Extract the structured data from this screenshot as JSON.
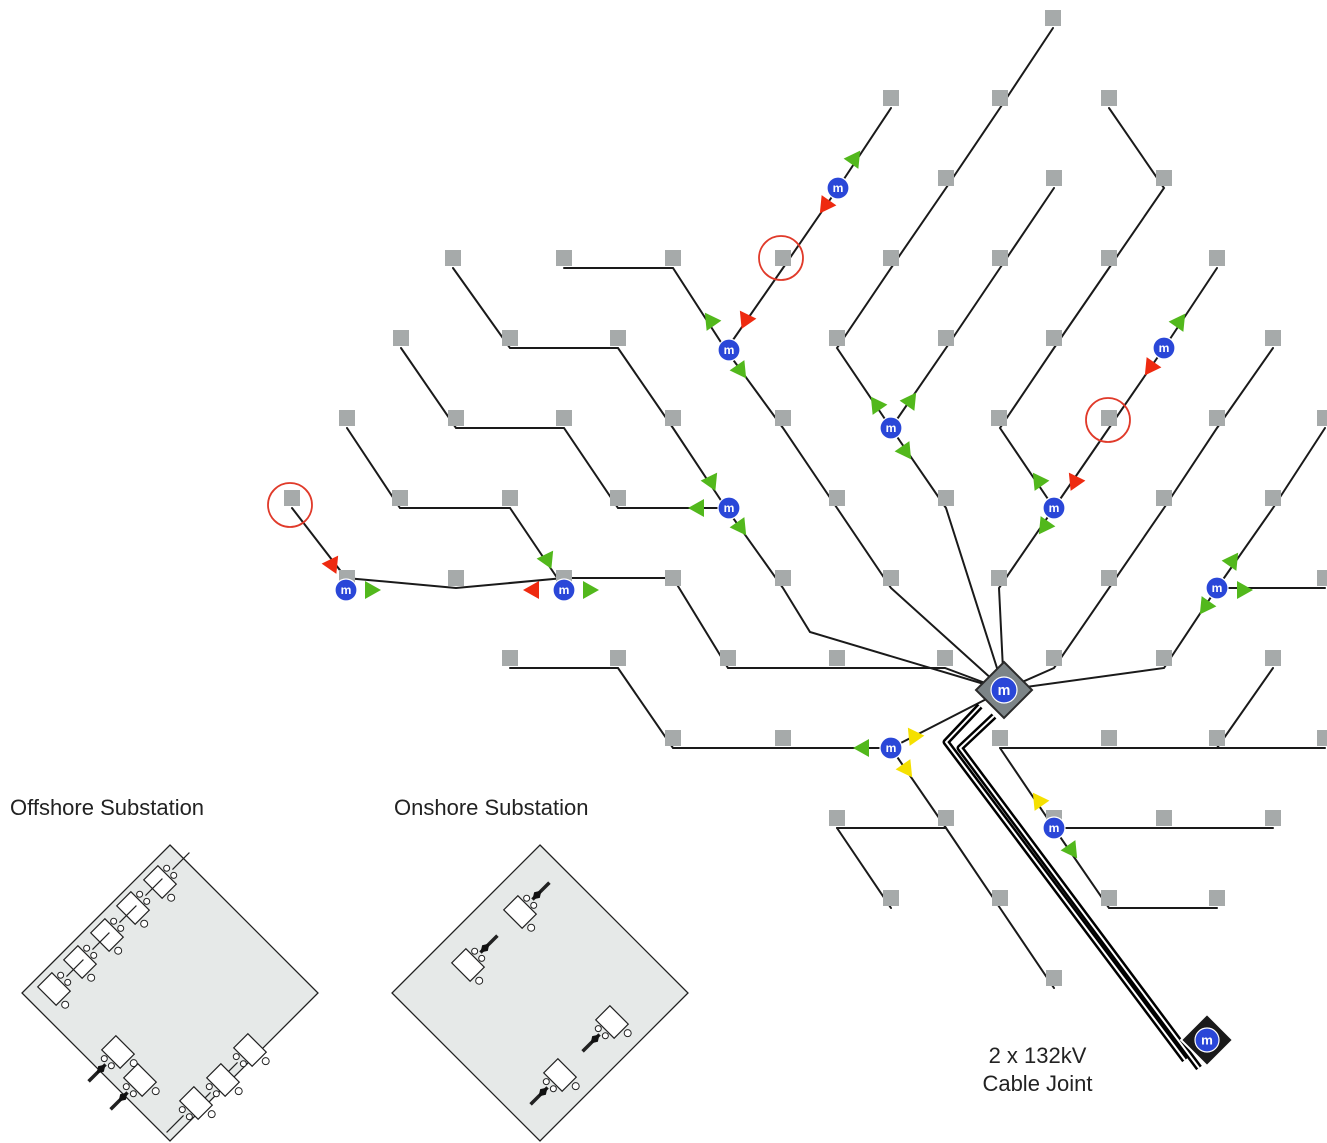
{
  "labels": {
    "offshore_substation": "Offshore Substation",
    "onshore_substation": "Onshore Substation",
    "cable_joint_line1": "2 x 132kV",
    "cable_joint_line2": "Cable Joint"
  },
  "meter_symbol": "m",
  "colors": {
    "turbine": "#a6aaaa",
    "cable": "#1a1a1a",
    "meter": "#2a47d8",
    "forward_arrow": "#52b81c",
    "fault_arrow": "#ee2a10",
    "warning_arrow": "#f5e000",
    "fault_circle": "#e03a2a",
    "substation_fill": "#e6e9e8",
    "export_cable": "#000000"
  },
  "icons": {
    "turbine": "square-node-icon",
    "meter": "meter-m-icon",
    "flow_arrow": "triangle-arrow-icon",
    "fault_marker": "red-circle-icon",
    "switchgear": "switchgear-bay-icon"
  }
}
